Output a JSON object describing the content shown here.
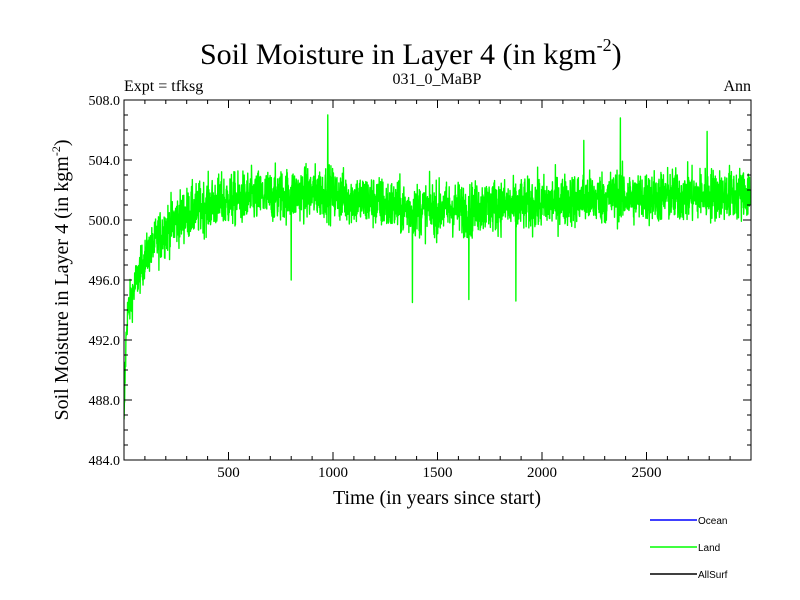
{
  "chart_data": {
    "type": "line",
    "title": "Soil Moisture in Layer 4 (in kgm",
    "title_sup": "-2",
    "title_close": ")",
    "subtitle_left": "Expt = tfksg",
    "subtitle_center": "031_0_MaBP",
    "subtitle_right": "Ann",
    "xlabel": "Time (in years since start)",
    "ylabel": "Soil Moisture in Layer 4 (in kgm",
    "ylabel_sup": "-2",
    "ylabel_close": ")",
    "xlim": [
      0,
      3000
    ],
    "ylim": [
      484,
      508
    ],
    "xticks": [
      500,
      1000,
      1500,
      2000,
      2500
    ],
    "xtick_labels": [
      "500",
      "1000",
      "1500",
      "2000",
      "2500"
    ],
    "yticks": [
      484,
      488,
      492,
      496,
      500,
      504,
      508
    ],
    "ytick_labels": [
      "484.0",
      "488.0",
      "492.0",
      "496.0",
      "500.0",
      "504.0",
      "508.0"
    ],
    "series": [
      {
        "name": "Ocean",
        "color": "#0000ff",
        "x": [],
        "values": []
      },
      {
        "name": "Land",
        "color": "#00ff00",
        "x": [
          0,
          5,
          10,
          15,
          20,
          30,
          40,
          50,
          60,
          80,
          100,
          125,
          150,
          175,
          200,
          250,
          300,
          350,
          400,
          450,
          500,
          600,
          700,
          800,
          900,
          970,
          1000,
          1100,
          1200,
          1300,
          1375,
          1400,
          1500,
          1600,
          1650,
          1700,
          1800,
          1875,
          1900,
          2000,
          2100,
          2200,
          2300,
          2375,
          2400,
          2500,
          2600,
          2700,
          2800,
          2900,
          3000
        ],
        "values": [
          486.0,
          489.5,
          492.0,
          493.5,
          494.0,
          494.5,
          495.0,
          495.5,
          496.0,
          496.7,
          497.4,
          498.0,
          498.5,
          499.0,
          499.4,
          500.0,
          500.4,
          500.7,
          501.0,
          501.2,
          501.3,
          501.5,
          501.6,
          501.7,
          501.8,
          501.9,
          501.7,
          501.4,
          501.2,
          500.9,
          500.6,
          500.7,
          500.7,
          500.8,
          500.6,
          500.9,
          501.0,
          500.8,
          501.0,
          501.1,
          501.3,
          501.4,
          501.5,
          501.6,
          501.5,
          501.5,
          501.6,
          501.6,
          501.7,
          501.7,
          501.8
        ],
        "noise_amplitude": 1.6,
        "extremes": [
          {
            "x": 975,
            "y": 507.0
          },
          {
            "x": 2375,
            "y": 506.8
          },
          {
            "x": 1380,
            "y": 494.5
          },
          {
            "x": 1650,
            "y": 494.7
          },
          {
            "x": 1875,
            "y": 494.6
          },
          {
            "x": 800,
            "y": 496.0
          },
          {
            "x": 2790,
            "y": 505.9
          },
          {
            "x": 2200,
            "y": 505.3
          }
        ]
      },
      {
        "name": "AllSurf",
        "color": "#000000",
        "x": [],
        "values": []
      }
    ],
    "legend": {
      "placement": "bottom-right",
      "entries": [
        "Ocean",
        "Land",
        "AllSurf"
      ]
    }
  }
}
